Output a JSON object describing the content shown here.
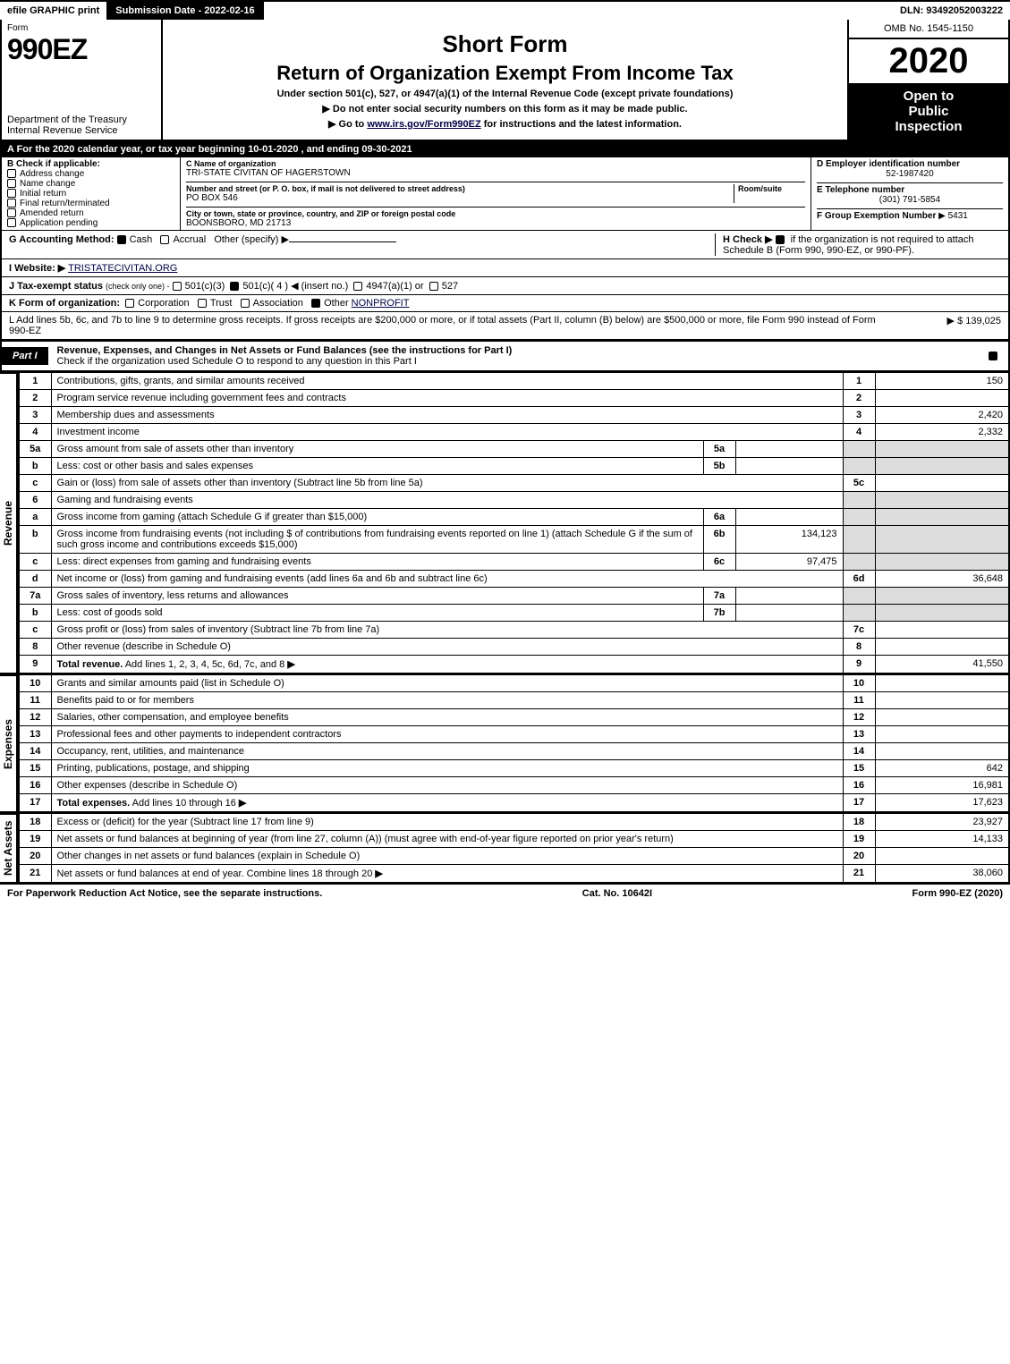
{
  "topbar": {
    "efile": "efile GRAPHIC print",
    "submission": "Submission Date - 2022-02-16",
    "dln": "DLN: 93492052003222"
  },
  "header": {
    "form_label": "Form",
    "form_number": "990EZ",
    "dept": "Department of the Treasury",
    "irs": "Internal Revenue Service",
    "title_short": "Short Form",
    "title_return": "Return of Organization Exempt From Income Tax",
    "subtitle": "Under section 501(c), 527, or 4947(a)(1) of the Internal Revenue Code (except private foundations)",
    "hint1": "▶ Do not enter social security numbers on this form as it may be made public.",
    "hint2_pre": "▶ Go to ",
    "hint2_link": "www.irs.gov/Form990EZ",
    "hint2_post": " for instructions and the latest information.",
    "omb": "OMB No. 1545-1150",
    "year": "2020",
    "open1": "Open to",
    "open2": "Public",
    "open3": "Inspection"
  },
  "periodA": "A For the 2020 calendar year, or tax year beginning 10-01-2020 , and ending 09-30-2021",
  "boxB": {
    "label": "B  Check if applicable:",
    "opts": [
      "Address change",
      "Name change",
      "Initial return",
      "Final return/terminated",
      "Amended return",
      "Application pending"
    ]
  },
  "boxC": {
    "label": "C Name of organization",
    "name": "TRI-STATE CIVITAN OF HAGERSTOWN",
    "addr_label": "Number and street (or P. O. box, if mail is not delivered to street address)",
    "room_label": "Room/suite",
    "addr": "PO BOX 546",
    "city_label": "City or town, state or province, country, and ZIP or foreign postal code",
    "city": "BOONSBORO, MD  21713"
  },
  "boxD": {
    "label": "D Employer identification number",
    "value": "52-1987420"
  },
  "boxE": {
    "label": "E Telephone number",
    "value": "(301) 791-5854"
  },
  "boxF": {
    "label": "F Group Exemption Number",
    "value": "▶ 5431"
  },
  "lineG": {
    "label": "G Accounting Method:",
    "cash": "Cash",
    "accrual": "Accrual",
    "other": "Other (specify) ▶"
  },
  "lineH": {
    "label": "H  Check ▶ ",
    "text": " if the organization is not required to attach Schedule B (Form 990, 990-EZ, or 990-PF)."
  },
  "lineI": {
    "label": "I Website: ▶",
    "value": "TRISTATECIVITAN.ORG"
  },
  "lineJ": {
    "label": "J Tax-exempt status",
    "sub": "(check only one) -",
    "o1": "501(c)(3)",
    "o2": "501(c)( 4 ) ◀ (insert no.)",
    "o3": "4947(a)(1) or",
    "o4": "527"
  },
  "lineK": {
    "label": "K Form of organization:",
    "o1": "Corporation",
    "o2": "Trust",
    "o3": "Association",
    "o4": "Other",
    "other_val": "NONPROFIT"
  },
  "lineL": {
    "text": "L Add lines 5b, 6c, and 7b to line 9 to determine gross receipts. If gross receipts are $200,000 or more, or if total assets (Part II, column (B) below) are $500,000 or more, file Form 990 instead of Form 990-EZ",
    "amount": "▶ $ 139,025"
  },
  "part1": {
    "tab": "Part I",
    "title": "Revenue, Expenses, and Changes in Net Assets or Fund Balances (see the instructions for Part I)",
    "subtitle": "Check if the organization used Schedule O to respond to any question in this Part I"
  },
  "sections": {
    "revenue_label": "Revenue",
    "expenses_label": "Expenses",
    "netassets_label": "Net Assets"
  },
  "rows": [
    {
      "n": "1",
      "d": "Contributions, gifts, grants, and similar amounts received",
      "box": "1",
      "amt": "150"
    },
    {
      "n": "2",
      "d": "Program service revenue including government fees and contracts",
      "box": "2",
      "amt": ""
    },
    {
      "n": "3",
      "d": "Membership dues and assessments",
      "box": "3",
      "amt": "2,420"
    },
    {
      "n": "4",
      "d": "Investment income",
      "box": "4",
      "amt": "2,332"
    },
    {
      "n": "5a",
      "d": "Gross amount from sale of assets other than inventory",
      "mb": "5a",
      "ma": "",
      "shade": true
    },
    {
      "n": "b",
      "d": "Less: cost or other basis and sales expenses",
      "mb": "5b",
      "ma": "",
      "shade": true
    },
    {
      "n": "c",
      "d": "Gain or (loss) from sale of assets other than inventory (Subtract line 5b from line 5a)",
      "box": "5c",
      "amt": ""
    },
    {
      "n": "6",
      "d": "Gaming and fundraising events",
      "shade": true,
      "noright": true
    },
    {
      "n": "a",
      "d": "Gross income from gaming (attach Schedule G if greater than $15,000)",
      "mb": "6a",
      "ma": "",
      "shade": true
    },
    {
      "n": "b",
      "d": "Gross income from fundraising events (not including $                          of contributions from fundraising events reported on line 1) (attach Schedule G if the sum of such gross income and contributions exceeds $15,000)",
      "mb": "6b",
      "ma": "134,123",
      "shade": true
    },
    {
      "n": "c",
      "d": "Less: direct expenses from gaming and fundraising events",
      "mb": "6c",
      "ma": "97,475",
      "shade": true
    },
    {
      "n": "d",
      "d": "Net income or (loss) from gaming and fundraising events (add lines 6a and 6b and subtract line 6c)",
      "box": "6d",
      "amt": "36,648"
    },
    {
      "n": "7a",
      "d": "Gross sales of inventory, less returns and allowances",
      "mb": "7a",
      "ma": "",
      "shade": true
    },
    {
      "n": "b",
      "d": "Less: cost of goods sold",
      "mb": "7b",
      "ma": "",
      "shade": true
    },
    {
      "n": "c",
      "d": "Gross profit or (loss) from sales of inventory (Subtract line 7b from line 7a)",
      "box": "7c",
      "amt": ""
    },
    {
      "n": "8",
      "d": "Other revenue (describe in Schedule O)",
      "box": "8",
      "amt": ""
    },
    {
      "n": "9",
      "d": "Total revenue. Add lines 1, 2, 3, 4, 5c, 6d, 7c, and 8",
      "box": "9",
      "amt": "41,550",
      "bold": true,
      "arrow": true
    }
  ],
  "exp_rows": [
    {
      "n": "10",
      "d": "Grants and similar amounts paid (list in Schedule O)",
      "box": "10",
      "amt": ""
    },
    {
      "n": "11",
      "d": "Benefits paid to or for members",
      "box": "11",
      "amt": ""
    },
    {
      "n": "12",
      "d": "Salaries, other compensation, and employee benefits",
      "box": "12",
      "amt": ""
    },
    {
      "n": "13",
      "d": "Professional fees and other payments to independent contractors",
      "box": "13",
      "amt": ""
    },
    {
      "n": "14",
      "d": "Occupancy, rent, utilities, and maintenance",
      "box": "14",
      "amt": ""
    },
    {
      "n": "15",
      "d": "Printing, publications, postage, and shipping",
      "box": "15",
      "amt": "642"
    },
    {
      "n": "16",
      "d": "Other expenses (describe in Schedule O)",
      "box": "16",
      "amt": "16,981"
    },
    {
      "n": "17",
      "d": "Total expenses. Add lines 10 through 16",
      "box": "17",
      "amt": "17,623",
      "bold": true,
      "arrow": true
    }
  ],
  "net_rows": [
    {
      "n": "18",
      "d": "Excess or (deficit) for the year (Subtract line 17 from line 9)",
      "box": "18",
      "amt": "23,927"
    },
    {
      "n": "19",
      "d": "Net assets or fund balances at beginning of year (from line 27, column (A)) (must agree with end-of-year figure reported on prior year's return)",
      "box": "19",
      "amt": "14,133"
    },
    {
      "n": "20",
      "d": "Other changes in net assets or fund balances (explain in Schedule O)",
      "box": "20",
      "amt": ""
    },
    {
      "n": "21",
      "d": "Net assets or fund balances at end of year. Combine lines 18 through 20",
      "box": "21",
      "amt": "38,060",
      "arrow": true
    }
  ],
  "footer": {
    "left": "For Paperwork Reduction Act Notice, see the separate instructions.",
    "mid": "Cat. No. 10642I",
    "right": "Form 990-EZ (2020)"
  }
}
